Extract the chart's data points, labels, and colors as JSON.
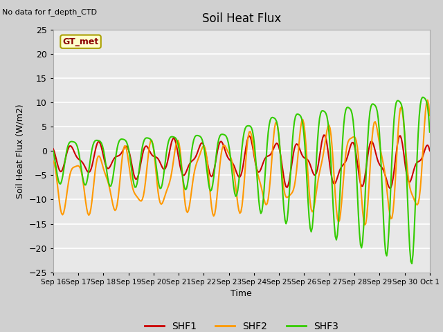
{
  "title": "Soil Heat Flux",
  "top_left_text": "No data for f_depth_CTD",
  "ylabel": "Soil Heat Flux (W/m2)",
  "xlabel": "Time",
  "legend_label": "GT_met",
  "ylim": [
    -25,
    25
  ],
  "yticks": [
    -25,
    -20,
    -15,
    -10,
    -5,
    0,
    5,
    10,
    15,
    20,
    25
  ],
  "x_tick_labels": [
    "Sep 16",
    "Sep 17",
    "Sep 18",
    "Sep 19",
    "Sep 20",
    "Sep 21",
    "Sep 22",
    "Sep 23",
    "Sep 24",
    "Sep 25",
    "Sep 26",
    "Sep 27",
    "Sep 28",
    "Sep 29",
    "Sep 30",
    "Oct 1"
  ],
  "fig_bg_color": "#d0d0d0",
  "plot_bg_color": "#e8e8e8",
  "grid_color": "#ffffff",
  "shf1_color": "#cc0000",
  "shf2_color": "#ff9900",
  "shf3_color": "#33cc00",
  "line_width": 1.5
}
